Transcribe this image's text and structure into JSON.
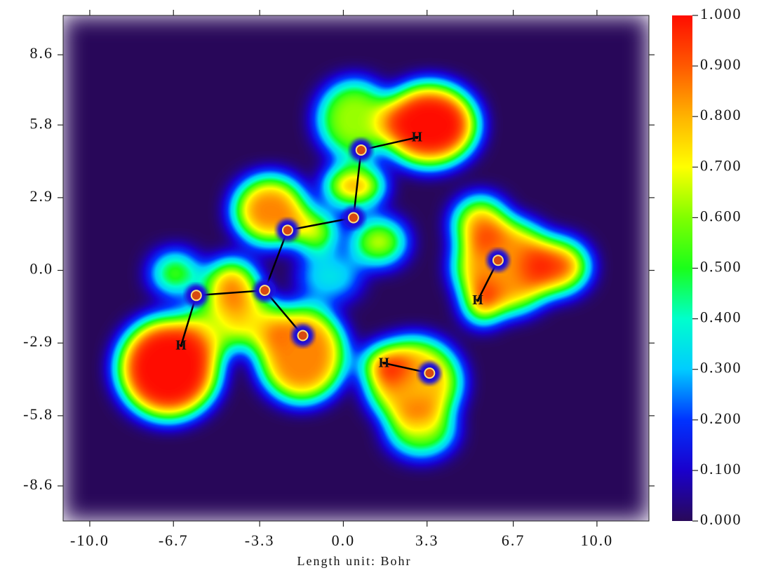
{
  "chart_data": {
    "type": "scatter",
    "x_label": "Length unit: Bohr",
    "xlim": [
      -11.05,
      12.05
    ],
    "ylim": [
      -10.0,
      10.17
    ],
    "xticks": [
      {
        "value": -10,
        "label": "-10.0"
      },
      {
        "value": -6.7,
        "label": "-6.7"
      },
      {
        "value": -3.3,
        "label": "-3.3"
      },
      {
        "value": 0,
        "label": "0.0"
      },
      {
        "value": 3.3,
        "label": "3.3"
      },
      {
        "value": 6.7,
        "label": "6.7"
      },
      {
        "value": 10,
        "label": "10.0"
      }
    ],
    "yticks": [
      {
        "value": -8.6,
        "label": "-8.6"
      },
      {
        "value": -5.8,
        "label": "-5.8"
      },
      {
        "value": -2.9,
        "label": "-2.9"
      },
      {
        "value": 0,
        "label": "0.0"
      },
      {
        "value": 2.9,
        "label": "2.9"
      },
      {
        "value": 5.8,
        "label": "5.8"
      },
      {
        "value": 8.6,
        "label": "8.6"
      }
    ],
    "atoms": {
      "x": [
        0.7,
        2.9,
        0.4,
        -2.2,
        -3.1,
        -5.8,
        -6.4,
        -1.6,
        6.1,
        5.3,
        3.4,
        1.6
      ],
      "y": [
        4.8,
        5.3,
        2.1,
        1.6,
        -0.8,
        -1.0,
        -3.0,
        -2.6,
        0.4,
        -1.2,
        -4.1,
        -3.7
      ],
      "labels": [
        null,
        "H",
        null,
        null,
        null,
        null,
        "H",
        null,
        null,
        "H",
        null,
        "H"
      ]
    },
    "bonds": [
      [
        0,
        1
      ],
      [
        0,
        2
      ],
      [
        2,
        3
      ],
      [
        3,
        4
      ],
      [
        4,
        5
      ],
      [
        5,
        6
      ],
      [
        4,
        7
      ],
      [
        8,
        9
      ],
      [
        10,
        11
      ]
    ],
    "colorbar": {
      "lim": [
        0,
        1
      ],
      "ticks": [
        {
          "value": 0,
          "label": "0.000"
        },
        {
          "value": 0.1,
          "label": "0.100"
        },
        {
          "value": 0.2,
          "label": "0.200"
        },
        {
          "value": 0.3,
          "label": "0.300"
        },
        {
          "value": 0.4,
          "label": "0.400"
        },
        {
          "value": 0.5,
          "label": "0.500"
        },
        {
          "value": 0.6,
          "label": "0.600"
        },
        {
          "value": 0.7,
          "label": "0.700"
        },
        {
          "value": 0.8,
          "label": "0.800"
        },
        {
          "value": 0.9,
          "label": "0.900"
        },
        {
          "value": 1,
          "label": "1.000"
        }
      ]
    }
  }
}
